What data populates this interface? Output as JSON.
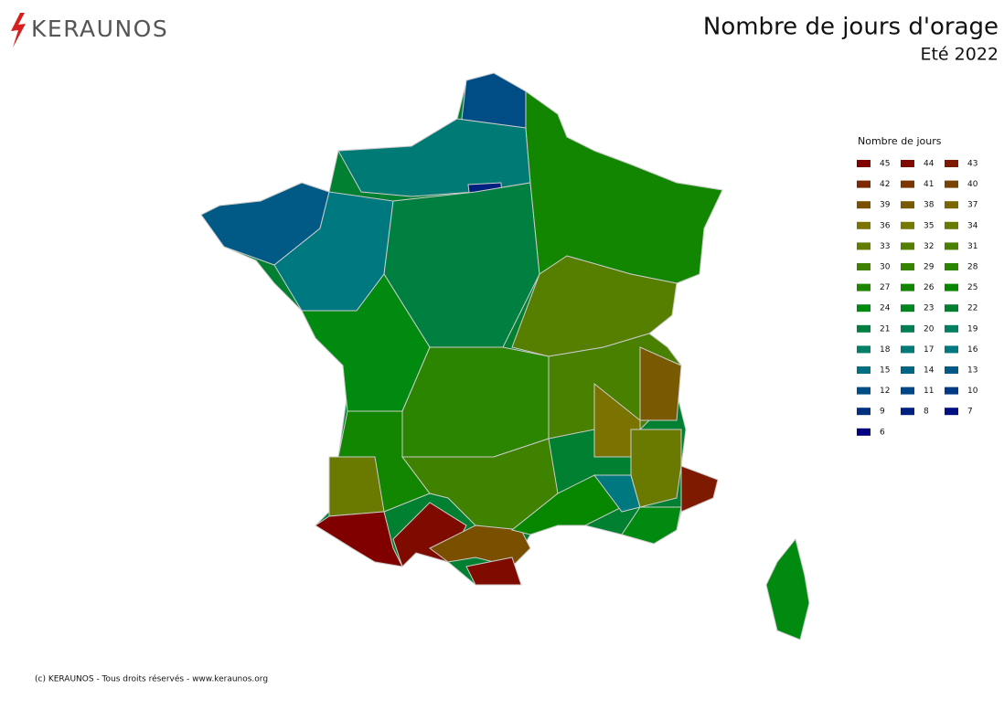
{
  "logo": "KERAUNOS",
  "title": "Nombre de jours d'orage",
  "subtitle": "Eté 2022",
  "legend": {
    "title": "Nombre de jours",
    "items": [
      {
        "value": 45,
        "color": "#800000"
      },
      {
        "value": 44,
        "color": "#7f0a00"
      },
      {
        "value": 43,
        "color": "#7d1a00"
      },
      {
        "value": 42,
        "color": "#7c2800"
      },
      {
        "value": 41,
        "color": "#7b3500"
      },
      {
        "value": 40,
        "color": "#7a4200"
      },
      {
        "value": 39,
        "color": "#7a5000"
      },
      {
        "value": 38,
        "color": "#7a5a00"
      },
      {
        "value": 37,
        "color": "#7a6600"
      },
      {
        "value": 36,
        "color": "#7a7300"
      },
      {
        "value": 35,
        "color": "#767a00"
      },
      {
        "value": 34,
        "color": "#6a7a00"
      },
      {
        "value": 33,
        "color": "#607d00"
      },
      {
        "value": 32,
        "color": "#567f00"
      },
      {
        "value": 31,
        "color": "#4a8000"
      },
      {
        "value": 30,
        "color": "#3f8200"
      },
      {
        "value": 29,
        "color": "#348400"
      },
      {
        "value": 28,
        "color": "#2b8500"
      },
      {
        "value": 27,
        "color": "#1f8600"
      },
      {
        "value": 26,
        "color": "#128600"
      },
      {
        "value": 25,
        "color": "#078600"
      },
      {
        "value": 24,
        "color": "#008a10"
      },
      {
        "value": 23,
        "color": "#008520"
      },
      {
        "value": 22,
        "color": "#008030"
      },
      {
        "value": 21,
        "color": "#008040"
      },
      {
        "value": 20,
        "color": "#008050"
      },
      {
        "value": 19,
        "color": "#008060"
      },
      {
        "value": 18,
        "color": "#008068"
      },
      {
        "value": 17,
        "color": "#007a75"
      },
      {
        "value": 16,
        "color": "#007880"
      },
      {
        "value": 15,
        "color": "#006f82"
      },
      {
        "value": 14,
        "color": "#006585"
      },
      {
        "value": 13,
        "color": "#005a85"
      },
      {
        "value": 12,
        "color": "#004d85"
      },
      {
        "value": 11,
        "color": "#004585"
      },
      {
        "value": 10,
        "color": "#003a85"
      },
      {
        "value": 9,
        "color": "#00307e"
      },
      {
        "value": 8,
        "color": "#002080"
      },
      {
        "value": 7,
        "color": "#001080"
      },
      {
        "value": 6,
        "color": "#000080"
      }
    ]
  },
  "map": {
    "values": [
      22,
      12,
      17,
      8,
      13,
      16,
      21,
      26,
      32,
      24,
      28,
      31,
      38,
      36,
      26,
      34,
      45,
      30,
      44,
      39,
      44,
      25,
      16,
      34,
      43,
      24,
      24
    ]
  },
  "footer": "(c) KERAUNOS - Tous droits réservés - www.keraunos.org"
}
